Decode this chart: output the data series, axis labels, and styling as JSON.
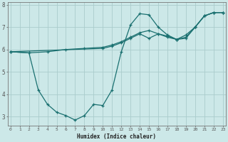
{
  "xlabel": "Humidex (Indice chaleur)",
  "bg_color": "#cce8e8",
  "grid_color": "#aacccc",
  "line_color": "#1a7070",
  "series": [
    {
      "x": [
        0,
        2,
        4,
        6,
        8,
        10,
        11,
        12,
        13,
        14,
        15,
        16,
        17,
        18,
        19,
        20,
        21,
        22,
        23
      ],
      "y": [
        5.9,
        5.85,
        5.9,
        6.0,
        6.05,
        6.1,
        6.2,
        6.35,
        6.55,
        6.75,
        6.85,
        6.7,
        6.55,
        6.45,
        6.55,
        7.0,
        7.5,
        7.65,
        7.65
      ]
    },
    {
      "x": [
        0,
        2,
        3,
        4,
        5,
        6,
        7,
        8,
        9,
        10,
        11,
        12,
        13,
        14,
        15,
        16,
        17,
        18,
        19,
        20,
        21,
        22,
        23
      ],
      "y": [
        5.9,
        5.85,
        4.2,
        3.55,
        3.2,
        3.05,
        2.85,
        3.05,
        3.55,
        3.5,
        4.2,
        5.9,
        7.1,
        7.6,
        7.55,
        7.0,
        6.65,
        6.45,
        6.5,
        7.0,
        7.5,
        7.65,
        7.65
      ]
    },
    {
      "x": [
        0,
        10,
        11,
        12,
        13,
        14,
        15,
        16,
        17,
        18,
        19,
        20,
        21,
        22,
        23
      ],
      "y": [
        5.9,
        6.05,
        6.15,
        6.3,
        6.5,
        6.7,
        6.5,
        6.7,
        6.6,
        6.45,
        6.65,
        7.0,
        7.5,
        7.65,
        7.65
      ]
    }
  ],
  "ylim": [
    2.6,
    8.1
  ],
  "xlim": [
    -0.3,
    23.3
  ],
  "yticks": [
    3,
    4,
    5,
    6,
    7,
    8
  ],
  "xticks": [
    0,
    1,
    2,
    3,
    4,
    5,
    6,
    7,
    8,
    9,
    10,
    11,
    12,
    13,
    14,
    15,
    16,
    17,
    18,
    19,
    20,
    21,
    22,
    23
  ],
  "figsize": [
    3.2,
    2.0
  ],
  "dpi": 100
}
